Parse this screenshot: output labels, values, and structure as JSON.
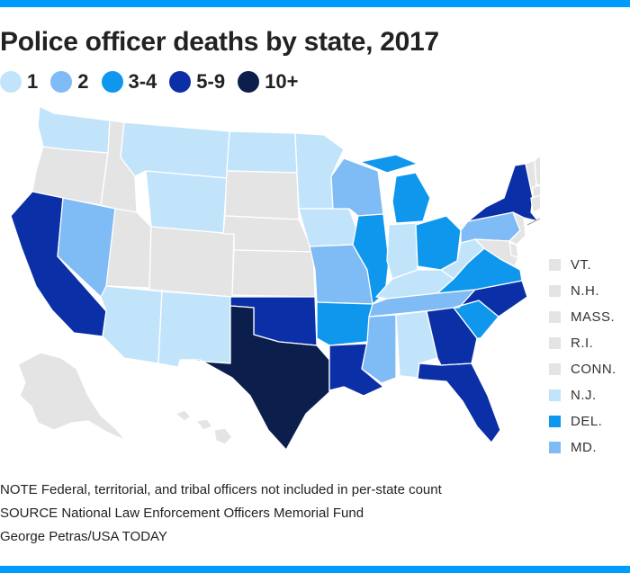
{
  "title": "Police officer deaths by state, 2017",
  "legend": [
    {
      "label": "1",
      "color": "#c2e4fb"
    },
    {
      "label": "2",
      "color": "#7fbbf5"
    },
    {
      "label": "3-4",
      "color": "#0f97ee"
    },
    {
      "label": "5-9",
      "color": "#0b2fa6"
    },
    {
      "label": "10+",
      "color": "#0c1f4c"
    }
  ],
  "no_data_color": "#e4e4e4",
  "small_states": [
    {
      "label": "VT.",
      "category": "0"
    },
    {
      "label": "N.H.",
      "category": "0"
    },
    {
      "label": "MASS.",
      "category": "0"
    },
    {
      "label": "R.I.",
      "category": "0"
    },
    {
      "label": "CONN.",
      "category": "0"
    },
    {
      "label": "N.J.",
      "category": "1"
    },
    {
      "label": "DEL.",
      "category": "3-4"
    },
    {
      "label": "MD.",
      "category": "2"
    }
  ],
  "states": {
    "WA": "1",
    "OR": "0",
    "CA": "5-9",
    "NV": "2",
    "ID": "0",
    "MT": "1",
    "WY": "1",
    "UT": "0",
    "AZ": "1",
    "CO": "0",
    "NM": "1",
    "ND": "1",
    "SD": "0",
    "NE": "0",
    "KS": "0",
    "OK": "5-9",
    "TX": "10+",
    "MN": "1",
    "IA": "1",
    "MO": "2",
    "AR": "3-4",
    "LA": "5-9",
    "WI": "2",
    "IL": "3-4",
    "MI": "3-4",
    "IN": "1",
    "OH": "3-4",
    "KY": "1",
    "TN": "2",
    "MS": "2",
    "AL": "1",
    "GA": "5-9",
    "FL": "5-9",
    "SC": "3-4",
    "NC": "5-9",
    "VA": "3-4",
    "WV": "1",
    "PA": "2",
    "NY": "5-9",
    "ME": "1",
    "AK": "0",
    "HI": "0"
  },
  "footer": {
    "note": "NOTE Federal, territorial, and tribal officers not included in per-state count",
    "source": "SOURCE National Law Enforcement Officers Memorial Fund",
    "credit": "George Petras/USA TODAY"
  }
}
